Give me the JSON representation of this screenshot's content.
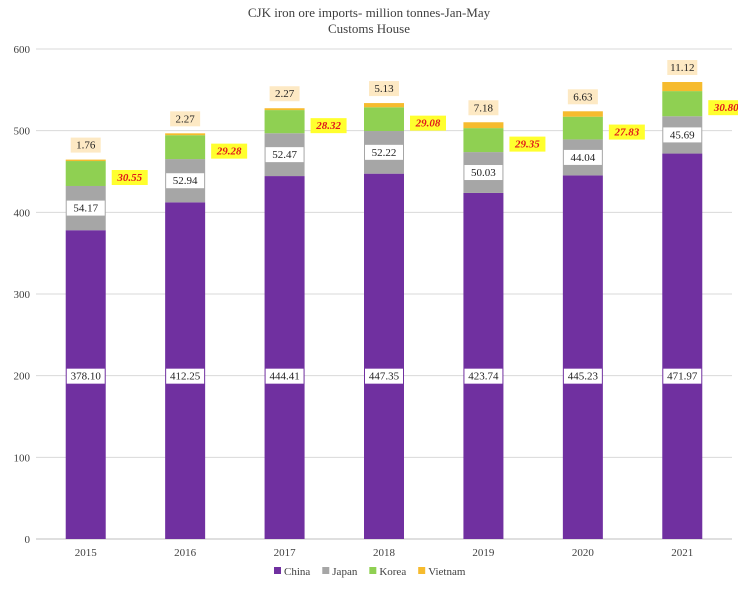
{
  "chart_data": {
    "type": "bar",
    "stacked": true,
    "title": "CJK iron ore imports- million tonnes-Jan-May",
    "subtitle": "Customs House",
    "categories": [
      "2015",
      "2016",
      "2017",
      "2018",
      "2019",
      "2020",
      "2021"
    ],
    "ylim": [
      0,
      600
    ],
    "yticks": [
      0,
      100,
      200,
      300,
      400,
      500,
      600
    ],
    "grid": true,
    "legend_position": "bottom",
    "series": [
      {
        "name": "China",
        "color": "#7030a0",
        "values": [
          378.1,
          412.25,
          444.41,
          447.35,
          423.74,
          445.23,
          471.97
        ],
        "labels": [
          "378.10",
          "412.25",
          "444.41",
          "447.35",
          "423.74",
          "445.23",
          "471.97"
        ]
      },
      {
        "name": "Japan",
        "color": "#a6a6a6",
        "values": [
          54.17,
          52.94,
          52.47,
          52.22,
          50.03,
          44.04,
          45.69
        ],
        "labels": [
          "54.17",
          "52.94",
          "52.47",
          "52.22",
          "50.03",
          "44.04",
          "45.69"
        ]
      },
      {
        "name": "Korea",
        "color": "#8fd052",
        "values": [
          30.55,
          29.28,
          28.32,
          29.08,
          29.35,
          27.83,
          30.8
        ],
        "labels": [
          "30.55",
          "29.28",
          "28.32",
          "29.08",
          "29.35",
          "27.83",
          "30.80"
        ]
      },
      {
        "name": "Vietnam",
        "color": "#f6bb2e",
        "values": [
          1.76,
          2.27,
          2.27,
          5.13,
          7.18,
          6.63,
          11.12
        ],
        "labels": [
          "1.76",
          "2.27",
          "2.27",
          "5.13",
          "7.18",
          "6.63",
          "11.12"
        ]
      }
    ]
  }
}
